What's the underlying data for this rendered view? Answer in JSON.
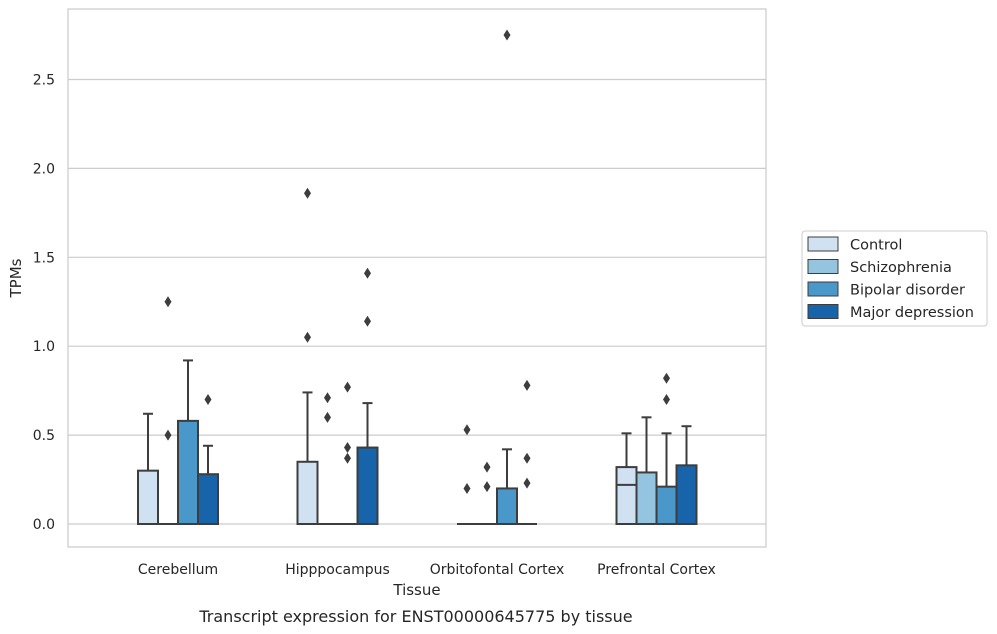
{
  "chart_data": {
    "type": "box",
    "title": "",
    "caption": "Transcript expression for ENST00000645775 by tissue",
    "xlabel": "Tissue",
    "ylabel": "TPMs",
    "ylim": [
      -0.13,
      2.9
    ],
    "yticks": [
      0.0,
      0.5,
      1.0,
      1.5,
      2.0,
      2.5
    ],
    "ytick_labels": [
      "0.0",
      "0.5",
      "1.0",
      "1.5",
      "2.0",
      "2.5"
    ],
    "grid": "horizontal",
    "legend_position": "right",
    "categories": [
      "Cerebellum",
      "Hipppocampus",
      "Orbitofontal Cortex",
      "Prefrontal Cortex"
    ],
    "series": [
      {
        "name": "Control",
        "color": "#d0e1f2",
        "boxes": [
          {
            "q1": 0.0,
            "median": 0.0,
            "q3": 0.3,
            "whisker_low": 0.0,
            "whisker_high": 0.62,
            "outliers": []
          },
          {
            "q1": 0.0,
            "median": 0.0,
            "q3": 0.35,
            "whisker_low": 0.0,
            "whisker_high": 0.74,
            "outliers": [
              1.05,
              1.86
            ]
          },
          {
            "q1": 0.0,
            "median": 0.0,
            "q3": 0.0,
            "whisker_low": 0.0,
            "whisker_high": 0.0,
            "outliers": [
              0.2,
              0.53
            ]
          },
          {
            "q1": 0.0,
            "median": 0.22,
            "q3": 0.32,
            "whisker_low": 0.0,
            "whisker_high": 0.51,
            "outliers": []
          }
        ]
      },
      {
        "name": "Schizophrenia",
        "color": "#94c4df",
        "boxes": [
          {
            "q1": 0.0,
            "median": 0.0,
            "q3": 0.0,
            "whisker_low": 0.0,
            "whisker_high": 0.0,
            "outliers": [
              0.5,
              1.25
            ]
          },
          {
            "q1": 0.0,
            "median": 0.0,
            "q3": 0.0,
            "whisker_low": 0.0,
            "whisker_high": 0.0,
            "outliers": [
              0.6,
              0.71
            ]
          },
          {
            "q1": 0.0,
            "median": 0.0,
            "q3": 0.0,
            "whisker_low": 0.0,
            "whisker_high": 0.0,
            "outliers": [
              0.21,
              0.32
            ]
          },
          {
            "q1": 0.0,
            "median": 0.0,
            "q3": 0.29,
            "whisker_low": 0.0,
            "whisker_high": 0.6,
            "outliers": []
          }
        ]
      },
      {
        "name": "Bipolar disorder",
        "color": "#4a98c9",
        "boxes": [
          {
            "q1": 0.0,
            "median": 0.0,
            "q3": 0.58,
            "whisker_low": 0.0,
            "whisker_high": 0.92,
            "outliers": []
          },
          {
            "q1": 0.0,
            "median": 0.0,
            "q3": 0.0,
            "whisker_low": 0.0,
            "whisker_high": 0.0,
            "outliers": [
              0.37,
              0.43,
              0.77
            ]
          },
          {
            "q1": 0.0,
            "median": 0.0,
            "q3": 0.2,
            "whisker_low": 0.0,
            "whisker_high": 0.42,
            "outliers": [
              2.75
            ]
          },
          {
            "q1": 0.0,
            "median": 0.0,
            "q3": 0.21,
            "whisker_low": 0.0,
            "whisker_high": 0.51,
            "outliers": [
              0.7,
              0.82
            ]
          }
        ]
      },
      {
        "name": "Major depression",
        "color": "#1764ab",
        "boxes": [
          {
            "q1": 0.0,
            "median": 0.0,
            "q3": 0.28,
            "whisker_low": 0.0,
            "whisker_high": 0.44,
            "outliers": [
              0.7
            ]
          },
          {
            "q1": 0.0,
            "median": 0.0,
            "q3": 0.43,
            "whisker_low": 0.0,
            "whisker_high": 0.68,
            "outliers": [
              1.14,
              1.41
            ]
          },
          {
            "q1": 0.0,
            "median": 0.0,
            "q3": 0.0,
            "whisker_low": 0.0,
            "whisker_high": 0.0,
            "outliers": [
              0.23,
              0.37,
              0.78
            ]
          },
          {
            "q1": 0.0,
            "median": 0.0,
            "q3": 0.33,
            "whisker_low": 0.0,
            "whisker_high": 0.55,
            "outliers": []
          }
        ]
      }
    ]
  },
  "colors": {
    "grid": "#cccccc",
    "frame": "#cccccc",
    "box_edge": "#3d3d3d",
    "outlier": "#3d3d3d"
  }
}
